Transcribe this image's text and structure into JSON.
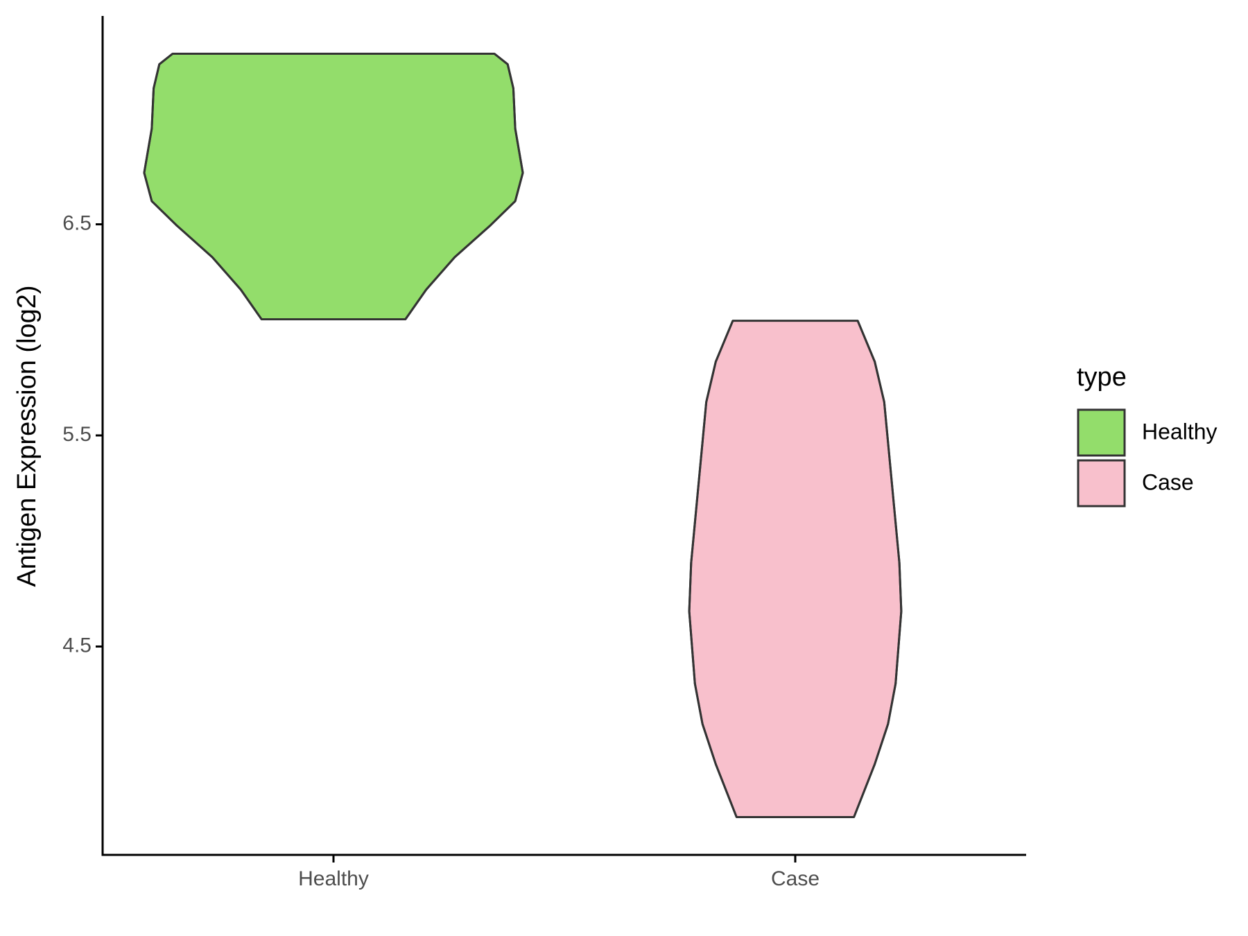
{
  "chart_data": {
    "type": "violin",
    "y_label": "Antigen Expression (log2)",
    "categories": [
      "Healthy",
      "Case"
    ],
    "series": [
      {
        "name": "Healthy",
        "color": "#93dd6b",
        "y": [
          7.308,
          7.258,
          7.144,
          6.953,
          6.744,
          6.61,
          6.496,
          6.344,
          6.191,
          6.05
        ],
        "density": [
          0.85,
          0.92,
          0.95,
          0.96,
          1.0,
          0.96,
          0.83,
          0.64,
          0.49,
          0.38
        ]
      },
      {
        "name": "Case",
        "color": "#f8c0cc",
        "y": [
          6.043,
          5.849,
          5.658,
          5.277,
          4.896,
          4.667,
          4.324,
          4.133,
          3.943,
          3.692
        ],
        "density": [
          0.33,
          0.42,
          0.47,
          0.51,
          0.55,
          0.56,
          0.53,
          0.49,
          0.42,
          0.31
        ]
      }
    ],
    "ylim": [
      3.513,
      7.487
    ],
    "yticks": [
      4.5,
      5.5,
      6.5
    ],
    "legend_title": "type",
    "legend_position": "right"
  }
}
